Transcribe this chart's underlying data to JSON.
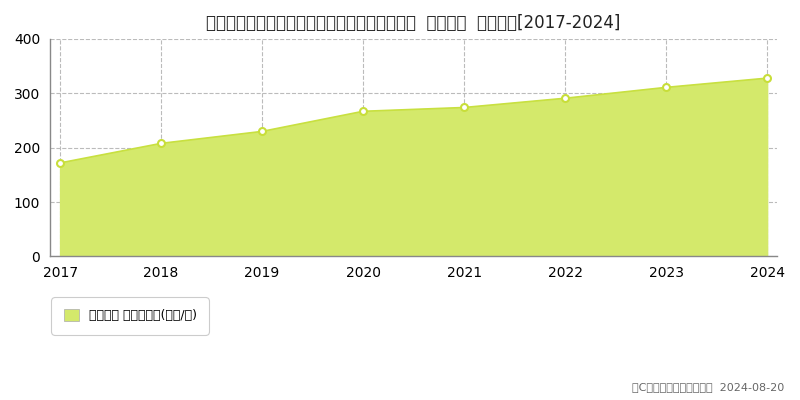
{
  "title": "北海道札幌市中央区大通西１８丁目１番２９外  地価公示  地価推移[2017-2024]",
  "years": [
    2017,
    2018,
    2019,
    2020,
    2021,
    2022,
    2023,
    2024
  ],
  "values": [
    172,
    208,
    230,
    267,
    274,
    291,
    311,
    328
  ],
  "ylim": [
    0,
    400
  ],
  "yticks": [
    0,
    100,
    200,
    300,
    400
  ],
  "fill_color": "#d4e96b",
  "line_color": "#c8e040",
  "marker_color": "#c8de3a",
  "marker_face": "#ffffff",
  "grid_color": "#bbbbbb",
  "bg_color": "#ffffff",
  "title_fontsize": 12,
  "legend_label": "地価公示 平均坪単価(万円/坪)",
  "copyright_text": "（C）土地価格ドットコム  2024-08-20",
  "tick_fontsize": 10,
  "spine_color": "#888888"
}
